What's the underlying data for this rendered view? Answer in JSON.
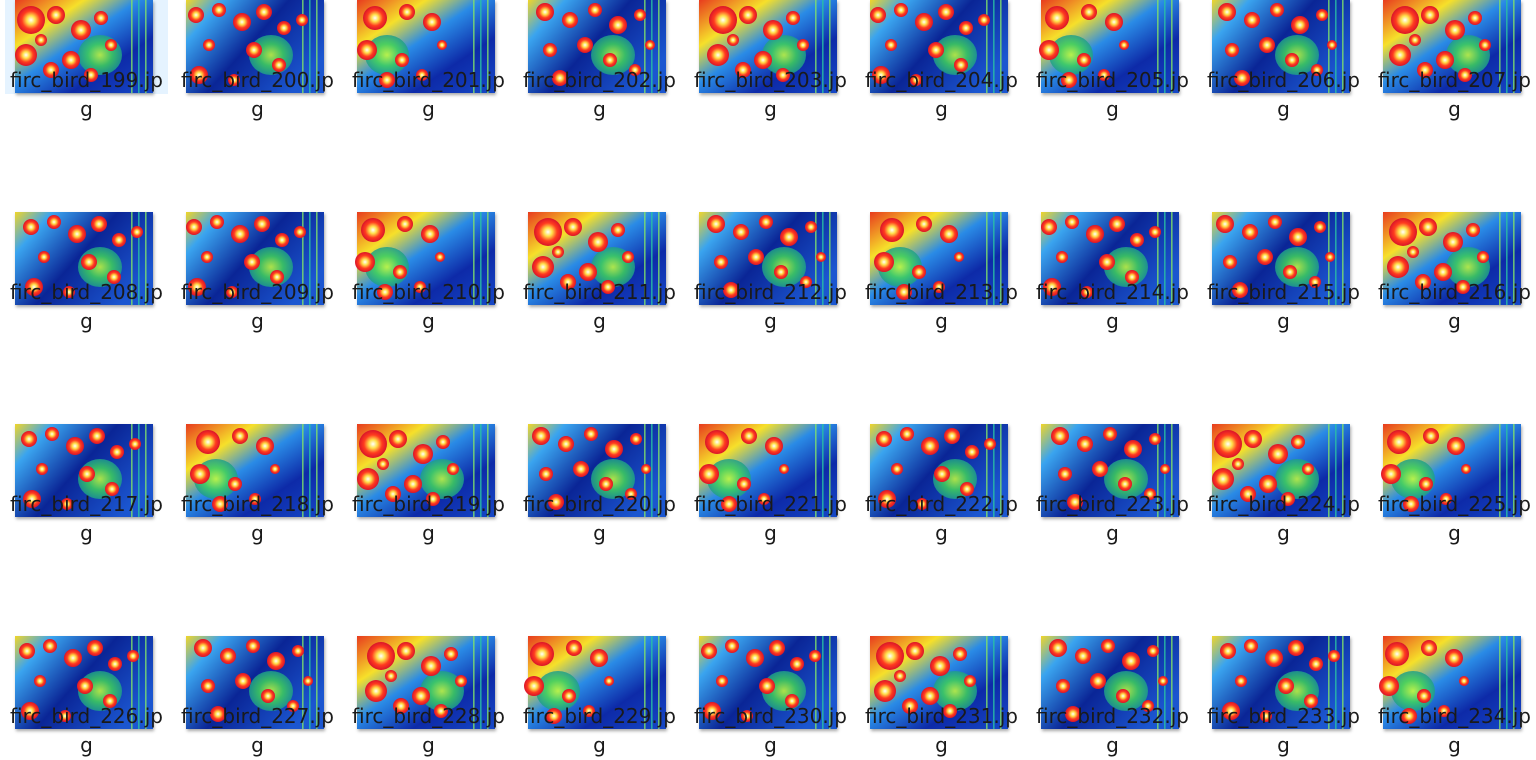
{
  "file_list": {
    "selected_index": 0,
    "thumbnail_colormap": "jet-thermal",
    "colors": {
      "selection_bg": "#e5f3ff",
      "text": "#1a1a1a",
      "background": "#ffffff"
    },
    "files": [
      {
        "name": "firc_bird_199.jpg",
        "variant": "a"
      },
      {
        "name": "firc_bird_200.jpg",
        "variant": "b"
      },
      {
        "name": "firc_bird_201.jpg",
        "variant": "c"
      },
      {
        "name": "firc_bird_202.jpg",
        "variant": "d"
      },
      {
        "name": "firc_bird_203.jpg",
        "variant": "a"
      },
      {
        "name": "firc_bird_204.jpg",
        "variant": "b"
      },
      {
        "name": "firc_bird_205.jpg",
        "variant": "c"
      },
      {
        "name": "firc_bird_206.jpg",
        "variant": "d"
      },
      {
        "name": "firc_bird_207.jpg",
        "variant": "a"
      },
      {
        "name": "firc_bird_208.jpg",
        "variant": "b"
      },
      {
        "name": "firc_bird_209.jpg",
        "variant": "b"
      },
      {
        "name": "firc_bird_210.jpg",
        "variant": "c"
      },
      {
        "name": "firc_bird_211.jpg",
        "variant": "a"
      },
      {
        "name": "firc_bird_212.jpg",
        "variant": "d"
      },
      {
        "name": "firc_bird_213.jpg",
        "variant": "c"
      },
      {
        "name": "firc_bird_214.jpg",
        "variant": "b"
      },
      {
        "name": "firc_bird_215.jpg",
        "variant": "d"
      },
      {
        "name": "firc_bird_216.jpg",
        "variant": "a"
      },
      {
        "name": "firc_bird_217.jpg",
        "variant": "b"
      },
      {
        "name": "firc_bird_218.jpg",
        "variant": "c"
      },
      {
        "name": "firc_bird_219.jpg",
        "variant": "a"
      },
      {
        "name": "firc_bird_220.jpg",
        "variant": "d"
      },
      {
        "name": "firc_bird_221.jpg",
        "variant": "c"
      },
      {
        "name": "firc_bird_222.jpg",
        "variant": "b"
      },
      {
        "name": "firc_bird_223.jpg",
        "variant": "d"
      },
      {
        "name": "firc_bird_224.jpg",
        "variant": "a"
      },
      {
        "name": "firc_bird_225.jpg",
        "variant": "c"
      },
      {
        "name": "firc_bird_226.jpg",
        "variant": "b"
      },
      {
        "name": "firc_bird_227.jpg",
        "variant": "d"
      },
      {
        "name": "firc_bird_228.jpg",
        "variant": "a"
      },
      {
        "name": "firc_bird_229.jpg",
        "variant": "c"
      },
      {
        "name": "firc_bird_230.jpg",
        "variant": "b"
      },
      {
        "name": "firc_bird_231.jpg",
        "variant": "a"
      },
      {
        "name": "firc_bird_232.jpg",
        "variant": "d"
      },
      {
        "name": "firc_bird_233.jpg",
        "variant": "b"
      },
      {
        "name": "firc_bird_234.jpg",
        "variant": "c"
      }
    ]
  }
}
